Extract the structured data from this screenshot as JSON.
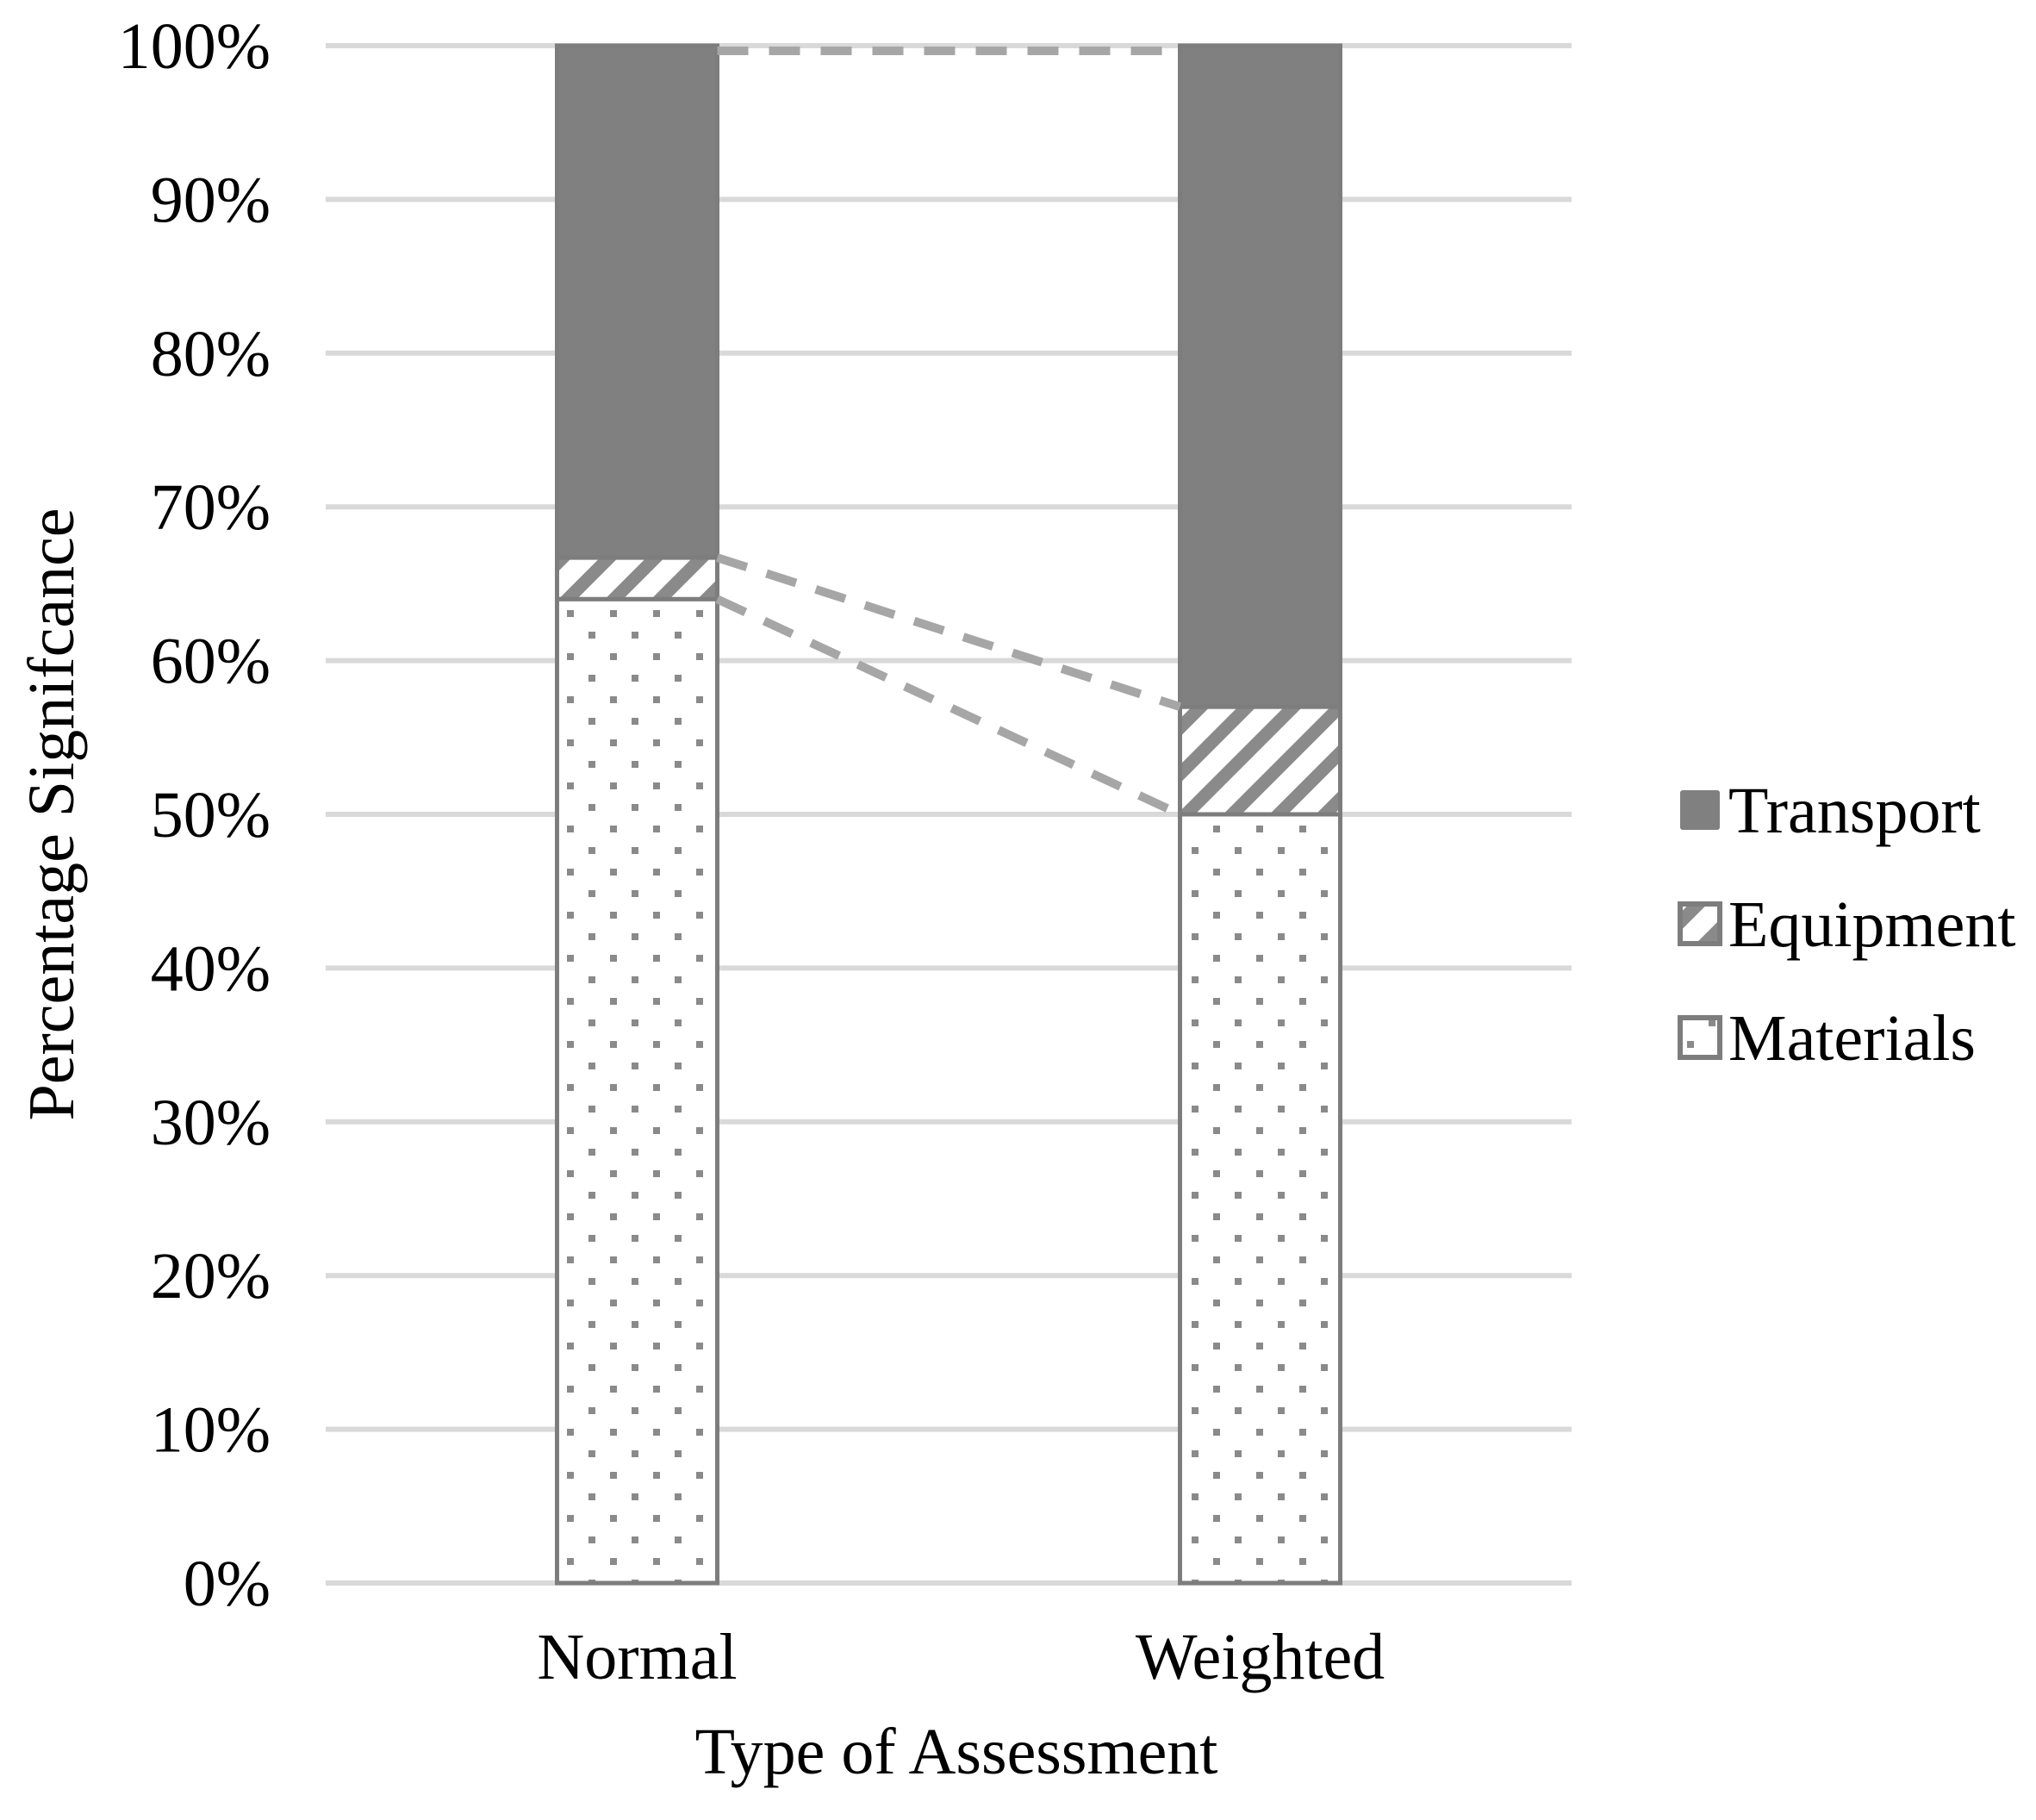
{
  "figure": {
    "kind": "stacked-column-chart",
    "background": "#ffffff"
  },
  "y_axis": {
    "title": "Percentage Signifcance",
    "ticks": [
      "100%",
      "90%",
      "80%",
      "70%",
      "60%",
      "50%",
      "40%",
      "30%",
      "20%",
      "10%",
      "0%"
    ],
    "min": 0,
    "max": 100,
    "step": 10
  },
  "x_axis": {
    "title": "Type of Assessment",
    "categories": [
      "Normal",
      "Weighted"
    ]
  },
  "legend": {
    "position": "right",
    "items": [
      {
        "label": "Transport",
        "swatch": "solid"
      },
      {
        "label": "Equipment",
        "swatch": "hatch"
      },
      {
        "label": "Materials",
        "swatch": "dots"
      }
    ]
  },
  "chart_data": {
    "type": "bar",
    "stacked": true,
    "categories": [
      "Normal",
      "Weighted"
    ],
    "series": [
      {
        "name": "Materials",
        "pattern": "dots",
        "values": [
          64.0,
          50.0
        ]
      },
      {
        "name": "Equipment",
        "pattern": "hatch",
        "values": [
          2.7,
          7.0
        ]
      },
      {
        "name": "Transport",
        "pattern": "solid",
        "values": [
          33.3,
          43.0
        ]
      }
    ],
    "title": "",
    "xlabel": "Type of Assessment",
    "ylabel": "Percentage Signifcance",
    "ylim": [
      0,
      100
    ],
    "grid": true,
    "legend_position": "right",
    "annotations": "gray dashed connector lines join the segment boundaries (100%, Equipment top, Materials top) of the two columns"
  },
  "colors": {
    "bar_fill": "#808080",
    "pattern_ink": "#8a8a8a",
    "bar_outline": "#7d7d7d",
    "gridline": "#d9d9d9",
    "connector": "#a6a6a6",
    "text": "#000000"
  }
}
